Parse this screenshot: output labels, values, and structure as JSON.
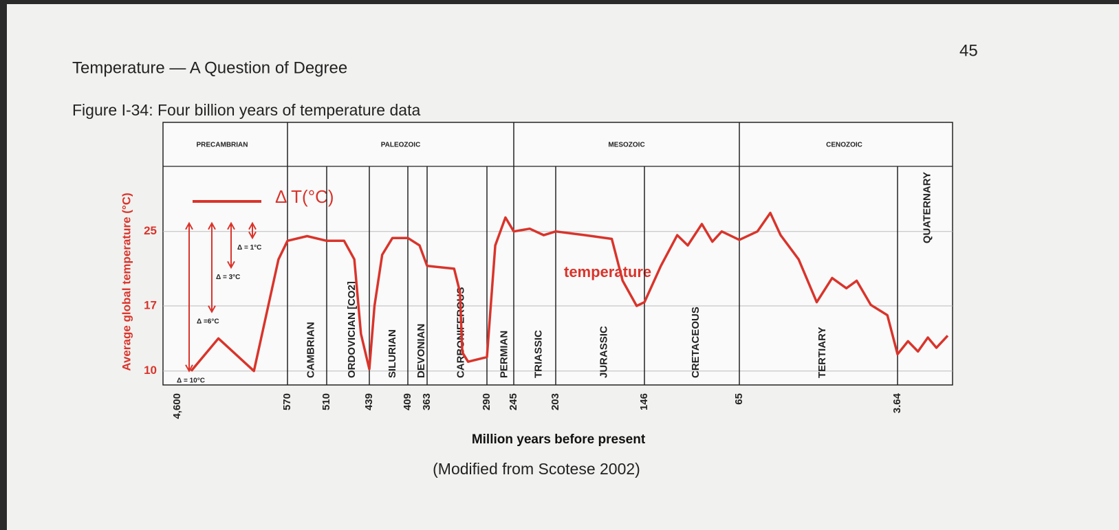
{
  "header": {
    "title": "Temperature — A Question of Degree",
    "page_number": "45"
  },
  "figure_caption": "Figure I-34: Four billion years of temperature data",
  "source": "(Modified from Scotese 2002)",
  "chart_data": {
    "type": "line",
    "y_label": "Average global temperature (°C)",
    "x_label": "Million years before present",
    "legend_label": "Δ T(°C)",
    "series": [
      {
        "name": "temperature",
        "color": "#d9342b",
        "x": [
          4100,
          3100,
          1800,
          900,
          570,
          540,
          510,
          481,
          464,
          453,
          439,
          435,
          429,
          421,
          409,
          381,
          363,
          330,
          323,
          320,
          313,
          290,
          276,
          259,
          245,
          229,
          215,
          203,
          184,
          167,
          160,
          151,
          146,
          132,
          118,
          109,
          97,
          88,
          80,
          65,
          58,
          53,
          49,
          42,
          35,
          29,
          23.5,
          19.5,
          14,
          7.6,
          3.64,
          2.9,
          2.2,
          1.5,
          0.9,
          0.1
        ],
        "values": [
          10,
          13.5,
          10,
          22,
          24,
          24.5,
          24,
          24,
          22,
          14,
          10.2,
          17,
          22.5,
          24.3,
          24.3,
          23.5,
          21.3,
          21,
          18.5,
          12,
          11,
          11.5,
          23.5,
          26.5,
          25,
          25.3,
          24.6,
          25,
          24.6,
          24.2,
          19.7,
          17,
          17.4,
          21.3,
          24.6,
          23.5,
          25.8,
          23.9,
          25,
          24.1,
          25,
          27,
          24.6,
          22,
          17.4,
          20,
          18.9,
          19.7,
          17.1,
          16,
          11.8,
          13.2,
          12.1,
          13.6,
          12.5,
          13.8
        ]
      }
    ],
    "xlim": [
      4600,
      0
    ],
    "xticks": [
      {
        "value": 4600,
        "label": "4,600"
      },
      570,
      510,
      439,
      409,
      363,
      290,
      245,
      203,
      146,
      65,
      3.64
    ],
    "ylim": [
      8.5,
      32
    ],
    "yticks": [
      10,
      17,
      25
    ],
    "grid": true,
    "eras": [
      "PRECAMBRIAN",
      "PALEOZOIC",
      "MESOZOIC",
      "CENOZOIC"
    ],
    "periods": [
      "CAMBRIAN",
      "ORDOVICIAN [CO2]",
      "SILURIAN",
      "DEVONIAN",
      "CARBONIFEROUS",
      "PERMIAN",
      "TRIASSIC",
      "JURASSIC",
      "CRETACEOUS",
      "TERTIARY",
      "QUATERNARY"
    ],
    "annotations": [
      {
        "label": "Δ = 10°C",
        "delta": 10
      },
      {
        "label": "Δ =6°C",
        "delta": 6
      },
      {
        "label": "Δ = 3°C",
        "delta": 3
      },
      {
        "label": "Δ = 1°C",
        "delta": 1
      }
    ]
  }
}
